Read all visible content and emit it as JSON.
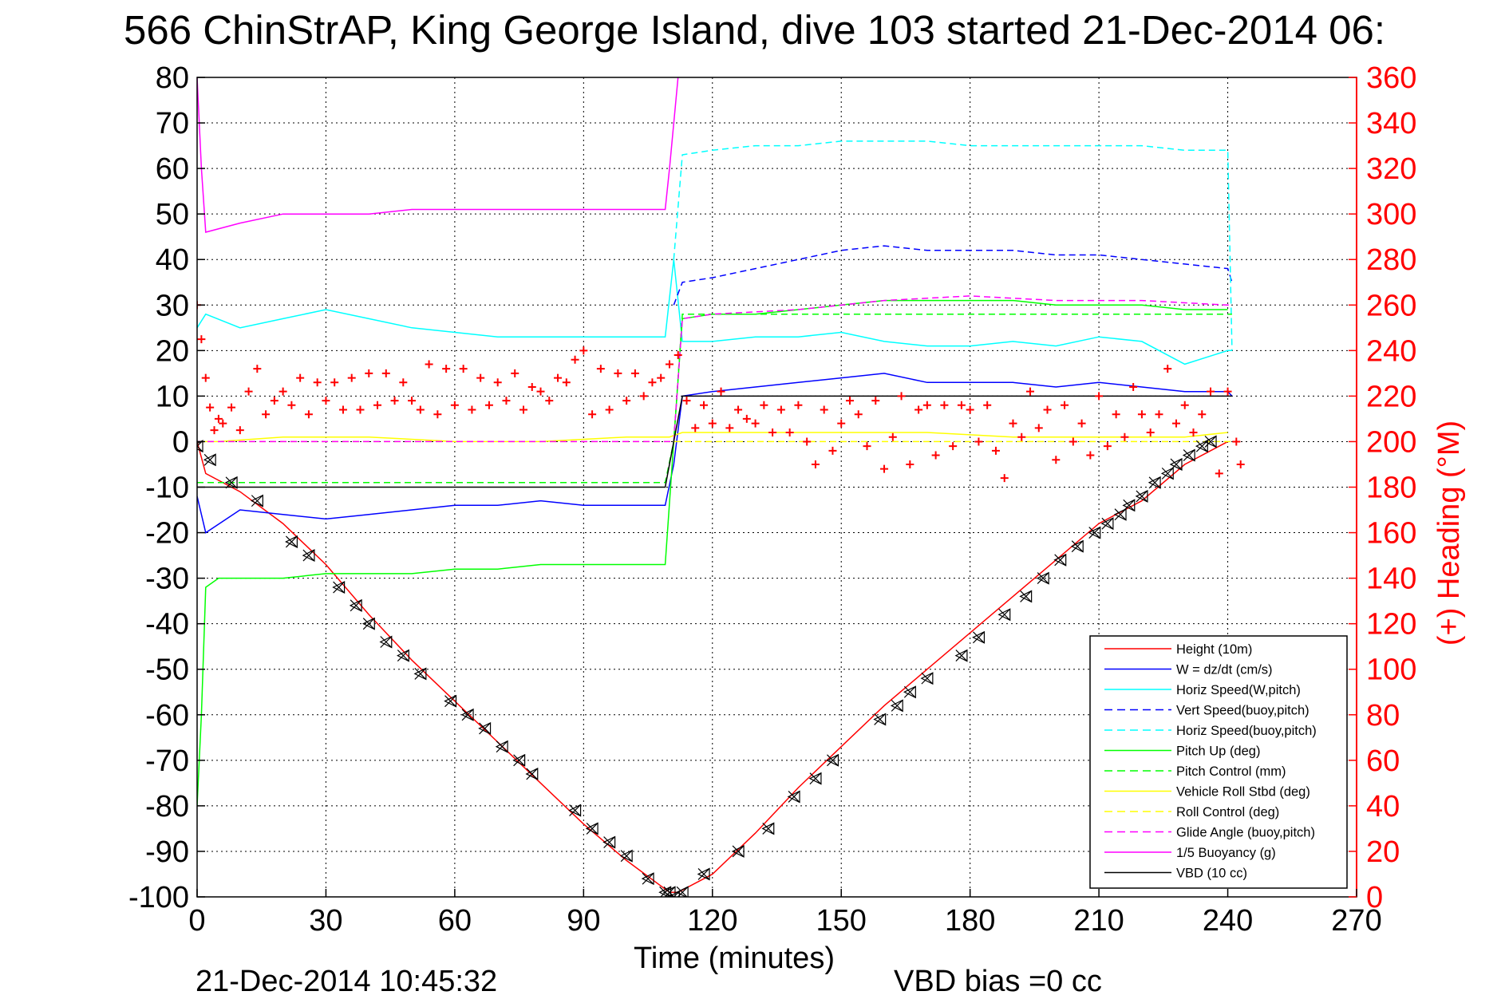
{
  "chart_data": {
    "type": "line",
    "title": "566 ChinStrAP, King George Island, dive 103 started 21-Dec-2014 06:",
    "xlabel": "Time (minutes)",
    "ylabel": "",
    "y2label": "(+) Heading (°M)",
    "xlim": [
      0,
      270
    ],
    "ylim": [
      -100,
      80
    ],
    "y2lim": [
      0,
      360
    ],
    "xticks": [
      0,
      30,
      60,
      90,
      120,
      150,
      180,
      210,
      240,
      270
    ],
    "yticks": [
      80,
      70,
      60,
      50,
      40,
      30,
      20,
      10,
      0,
      -10,
      -20,
      -30,
      -40,
      -50,
      -60,
      -70,
      -80,
      -90,
      -100
    ],
    "y2ticks": [
      360,
      340,
      320,
      300,
      280,
      260,
      240,
      220,
      200,
      180,
      160,
      140,
      120,
      100,
      80,
      60,
      40,
      20,
      0
    ],
    "grid": true,
    "legend_position": "lower-right",
    "footer_left": "21-Dec-2014 10:45:32",
    "footer_right": "VBD bias =0 cc",
    "colors": {
      "red": "#ff0000",
      "blue": "#0000ff",
      "cyan": "#00ffff",
      "green": "#00ff00",
      "yellow": "#ffff00",
      "magenta": "#ff00ff",
      "black": "#000000"
    },
    "series": [
      {
        "name": "Height (10m)",
        "color": "#ff0000",
        "style": "solid",
        "x": [
          0,
          2,
          10,
          20,
          30,
          40,
          50,
          60,
          70,
          80,
          90,
          100,
          110,
          112,
          120,
          130,
          140,
          150,
          160,
          170,
          180,
          190,
          200,
          210,
          220,
          230,
          240
        ],
        "y": [
          0,
          -7,
          -11,
          -18,
          -27,
          -38,
          -48,
          -57,
          -66,
          -75,
          -84,
          -92,
          -99,
          -99,
          -95,
          -86,
          -76,
          -67,
          -58,
          -50,
          -42,
          -34,
          -26,
          -18,
          -13,
          -5,
          0
        ]
      },
      {
        "name": "W = dz/dt (cm/s)",
        "color": "#0000ff",
        "style": "solid",
        "x": [
          0,
          2,
          10,
          20,
          30,
          40,
          50,
          60,
          70,
          80,
          90,
          100,
          109,
          111,
          113,
          120,
          130,
          140,
          150,
          160,
          170,
          180,
          190,
          200,
          210,
          220,
          230,
          240,
          241
        ],
        "y": [
          -12,
          -20,
          -15,
          -16,
          -17,
          -16,
          -15,
          -14,
          -14,
          -13,
          -14,
          -14,
          -14,
          -5,
          10,
          11,
          12,
          13,
          14,
          15,
          13,
          13,
          13,
          12,
          13,
          12,
          11,
          11,
          10
        ]
      },
      {
        "name": "Horiz Speed(W,pitch)",
        "color": "#00ffff",
        "style": "solid",
        "x": [
          0,
          2,
          10,
          20,
          30,
          40,
          50,
          60,
          70,
          80,
          90,
          100,
          109,
          111,
          113,
          120,
          130,
          140,
          150,
          160,
          170,
          180,
          190,
          200,
          210,
          220,
          230,
          240,
          241
        ],
        "y": [
          25,
          28,
          25,
          27,
          29,
          27,
          25,
          24,
          23,
          23,
          23,
          23,
          23,
          40,
          22,
          22,
          23,
          23,
          24,
          22,
          21,
          21,
          22,
          21,
          23,
          22,
          17,
          20,
          20
        ]
      },
      {
        "name": "Vert Speed(buoy,pitch)",
        "color": "#0000ff",
        "style": "dashed",
        "x": [
          111,
          113,
          120,
          130,
          140,
          150,
          160,
          170,
          180,
          190,
          200,
          210,
          220,
          230,
          240,
          241
        ],
        "y": [
          30,
          35,
          36,
          38,
          40,
          42,
          43,
          42,
          42,
          42,
          41,
          41,
          40,
          39,
          38,
          35
        ]
      },
      {
        "name": "Horiz Speed(buoy,pitch)",
        "color": "#00ffff",
        "style": "dashed",
        "x": [
          111,
          113,
          120,
          130,
          140,
          150,
          160,
          170,
          180,
          190,
          200,
          210,
          220,
          230,
          240,
          241
        ],
        "y": [
          40,
          63,
          64,
          65,
          65,
          66,
          66,
          66,
          65,
          65,
          65,
          65,
          65,
          64,
          64,
          20
        ]
      },
      {
        "name": "Pitch Up (deg)",
        "color": "#00ff00",
        "style": "solid",
        "x": [
          0,
          1,
          2,
          5,
          10,
          20,
          30,
          40,
          50,
          60,
          70,
          80,
          90,
          100,
          109,
          111,
          113,
          120,
          130,
          140,
          150,
          160,
          170,
          180,
          190,
          200,
          210,
          220,
          230,
          240
        ],
        "y": [
          -80,
          -60,
          -32,
          -30,
          -30,
          -30,
          -29,
          -29,
          -29,
          -28,
          -28,
          -27,
          -27,
          -27,
          -27,
          0,
          27,
          28,
          28,
          29,
          30,
          31,
          31,
          31,
          31,
          30,
          30,
          30,
          29,
          29
        ]
      },
      {
        "name": "Pitch Control (mm)",
        "color": "#00ff00",
        "style": "dashed",
        "x": [
          0,
          2,
          109,
          111,
          113,
          241
        ],
        "y": [
          -9,
          -9,
          -9,
          0,
          28,
          28
        ]
      },
      {
        "name": "Vehicle Roll Stbd (deg)",
        "color": "#ffff00",
        "style": "solid",
        "x": [
          0,
          5,
          20,
          40,
          60,
          80,
          100,
          110,
          113,
          130,
          150,
          170,
          190,
          210,
          230,
          240
        ],
        "y": [
          0,
          0,
          1,
          1,
          0,
          0,
          1,
          1,
          2,
          2,
          2,
          2,
          1,
          1,
          1,
          2
        ]
      },
      {
        "name": "Roll Control (deg)",
        "color": "#ffff00",
        "style": "dashed",
        "x": [
          0,
          5,
          109,
          111,
          113,
          241
        ],
        "y": [
          0,
          0,
          0,
          0,
          0,
          0
        ]
      },
      {
        "name": "Glide Angle (buoy,pitch)",
        "color": "#ff00ff",
        "style": "dashed",
        "x": [
          0,
          2,
          109,
          111,
          113,
          120,
          140,
          160,
          180,
          200,
          220,
          240,
          241
        ],
        "y": [
          0,
          0,
          0,
          0,
          27,
          28,
          29,
          31,
          32,
          31,
          31,
          30,
          30
        ]
      },
      {
        "name": "1/5 Buoyancy (g)",
        "color": "#ff00ff",
        "style": "solid",
        "x": [
          0,
          1,
          2,
          10,
          20,
          30,
          40,
          50,
          60,
          70,
          80,
          90,
          100,
          109,
          110,
          112
        ],
        "y": [
          80,
          60,
          46,
          48,
          50,
          50,
          50,
          51,
          51,
          51,
          51,
          51,
          51,
          51,
          60,
          80
        ]
      },
      {
        "name": "VBD (10 cc)",
        "color": "#000000",
        "style": "solid",
        "x": [
          0,
          2,
          109,
          111,
          113,
          241
        ],
        "y": [
          -10,
          -10,
          -10,
          0,
          10,
          10
        ]
      }
    ],
    "heading": {
      "name": "Heading",
      "color": "#ff0000",
      "marker": "+",
      "axis": "right",
      "x": [
        0,
        1,
        2,
        3,
        4,
        5,
        6,
        8,
        10,
        12,
        14,
        16,
        18,
        20,
        22,
        24,
        26,
        28,
        30,
        32,
        34,
        36,
        38,
        40,
        42,
        44,
        46,
        48,
        50,
        52,
        54,
        56,
        58,
        60,
        62,
        64,
        66,
        68,
        70,
        72,
        74,
        76,
        78,
        80,
        82,
        84,
        86,
        88,
        90,
        92,
        94,
        96,
        98,
        100,
        102,
        104,
        106,
        108,
        110,
        112,
        114,
        116,
        118,
        120,
        122,
        124,
        126,
        128,
        130,
        132,
        134,
        136,
        138,
        140,
        142,
        144,
        146,
        148,
        150,
        152,
        154,
        156,
        158,
        160,
        162,
        164,
        166,
        168,
        170,
        172,
        174,
        176,
        178,
        180,
        182,
        184,
        186,
        188,
        190,
        192,
        194,
        196,
        198,
        200,
        202,
        204,
        206,
        208,
        210,
        212,
        214,
        216,
        218,
        220,
        222,
        224,
        226,
        228,
        230,
        232,
        234,
        236,
        238,
        240,
        242,
        243
      ],
      "y": [
        260,
        245,
        228,
        215,
        205,
        210,
        208,
        215,
        205,
        222,
        232,
        212,
        218,
        222,
        216,
        228,
        212,
        226,
        218,
        226,
        214,
        228,
        214,
        230,
        216,
        230,
        218,
        226,
        218,
        214,
        234,
        212,
        232,
        216,
        232,
        214,
        228,
        216,
        226,
        218,
        230,
        214,
        224,
        222,
        218,
        228,
        226,
        236,
        240,
        212,
        232,
        214,
        230,
        218,
        230,
        220,
        226,
        228,
        234,
        238,
        218,
        206,
        216,
        208,
        222,
        206,
        214,
        210,
        208,
        216,
        204,
        214,
        204,
        216,
        200,
        190,
        214,
        196,
        208,
        218,
        212,
        198,
        218,
        188,
        202,
        220,
        190,
        214,
        216,
        194,
        216,
        198,
        216,
        214,
        200,
        216,
        196,
        184,
        208,
        202,
        222,
        206,
        214,
        192,
        216,
        200,
        208,
        194,
        220,
        198,
        212,
        202,
        224,
        212,
        204,
        212,
        232,
        208,
        216,
        204,
        212,
        222,
        186,
        222,
        200,
        190
      ]
    },
    "depth_markers": {
      "marker": "triangle-x",
      "x": [
        0,
        3,
        8,
        14,
        22,
        26,
        33,
        37,
        40,
        44,
        48,
        52,
        59,
        63,
        67,
        71,
        75,
        78,
        88,
        92,
        96,
        100,
        105,
        109,
        110,
        111,
        113,
        118,
        126,
        133,
        139,
        144,
        148,
        159,
        163,
        166,
        170,
        178,
        182,
        188,
        193,
        197,
        201,
        205,
        209,
        212,
        215,
        217,
        220,
        223,
        226,
        228,
        231,
        234,
        236
      ],
      "y": [
        -1,
        -4,
        -9,
        -13,
        -22,
        -25,
        -32,
        -36,
        -40,
        -44,
        -47,
        -51,
        -57,
        -60,
        -63,
        -67,
        -70,
        -73,
        -81,
        -85,
        -88,
        -91,
        -96,
        -99,
        -99,
        -100,
        -99,
        -95,
        -90,
        -85,
        -78,
        -74,
        -70,
        -61,
        -58,
        -55,
        -52,
        -47,
        -43,
        -38,
        -34,
        -30,
        -26,
        -23,
        -20,
        -18,
        -16,
        -14,
        -12,
        -9,
        -7,
        -5,
        -3,
        -1,
        0
      ]
    }
  }
}
